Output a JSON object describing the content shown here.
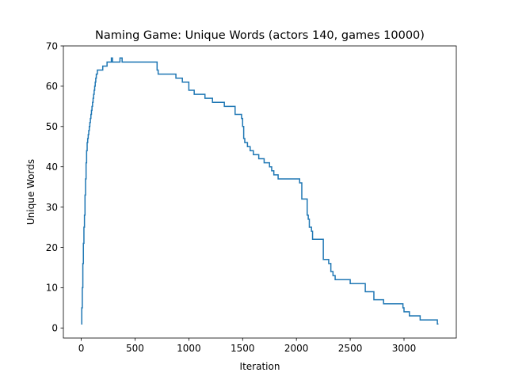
{
  "chart_data": {
    "type": "line",
    "title": "Naming Game: Unique Words (actors 140, games 10000)",
    "xlabel": "Iteration",
    "ylabel": "Unique Words",
    "xlim": [
      -166,
      3486
    ],
    "ylim": [
      -2.5,
      70
    ],
    "xticks": [
      0,
      500,
      1000,
      1500,
      2000,
      2500,
      3000
    ],
    "yticks": [
      0,
      10,
      20,
      30,
      40,
      50,
      60,
      70
    ],
    "grid": false,
    "legend": "none",
    "series": [
      {
        "color": "#1f77b4",
        "x": [
          0,
          5,
          10,
          15,
          20,
          25,
          30,
          35,
          40,
          45,
          50,
          55,
          60,
          65,
          70,
          75,
          80,
          85,
          90,
          95,
          100,
          105,
          110,
          115,
          120,
          125,
          130,
          135,
          140,
          150,
          160,
          170,
          200,
          240,
          250,
          280,
          290,
          300,
          310,
          350,
          360,
          370,
          380,
          390,
          420,
          500,
          600,
          700,
          705,
          710,
          715,
          880,
          940,
          1000,
          1010,
          1050,
          1150,
          1220,
          1330,
          1430,
          1490,
          1500,
          1510,
          1515,
          1520,
          1530,
          1545,
          1570,
          1600,
          1650,
          1700,
          1750,
          1770,
          1790,
          1800,
          1830,
          2030,
          2050,
          2100,
          2110,
          2120,
          2140,
          2150,
          2160,
          2250,
          2300,
          2320,
          2340,
          2360,
          2400,
          2500,
          2600,
          2640,
          2720,
          2810,
          2990,
          3000,
          3010,
          3050,
          3150,
          3300,
          3310,
          3320
        ],
        "y": [
          1,
          5,
          10,
          16,
          21,
          25,
          28,
          33,
          37,
          41,
          44,
          46,
          47,
          48,
          49,
          50,
          51,
          52,
          53,
          54,
          55,
          56,
          57,
          58,
          59,
          60,
          61,
          62,
          63,
          64,
          64,
          64,
          65,
          66,
          66,
          67,
          66,
          66,
          66,
          66,
          67,
          67,
          66,
          66,
          66,
          66,
          66,
          66,
          64,
          64,
          63,
          62,
          61,
          59,
          59,
          58,
          57,
          56,
          55,
          53,
          52,
          50,
          47,
          47,
          46,
          46,
          45,
          44,
          43,
          42,
          41,
          40,
          39,
          38,
          38,
          37,
          36,
          32,
          28,
          27,
          25,
          24,
          22,
          22,
          17,
          16,
          14,
          13,
          12,
          12,
          11,
          11,
          9,
          7,
          6,
          5,
          4,
          4,
          3,
          2,
          2,
          1,
          1
        ]
      }
    ]
  }
}
